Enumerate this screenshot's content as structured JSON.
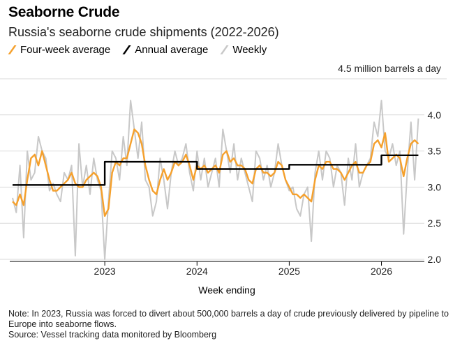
{
  "title": "Seaborne Crude",
  "subtitle": "Russia's seaborne crude shipments (2022-2026)",
  "legend": {
    "four_week": "Four-week average",
    "annual": "Annual average",
    "weekly": "Weekly"
  },
  "colors": {
    "four_week": "#f5a02c",
    "annual": "#000000",
    "weekly": "#c8c8c8",
    "grid": "#d9d9d9"
  },
  "unit_label": "4.5 million barrels a day",
  "xlabel": "Week ending",
  "note": "Note: In 2023, Russia was forced to divert about 500,000 barrels a day of crude previously delivered by pipeline to Europe into seaborne flows.",
  "source": "Source: Vessel tracking data monitored by Bloomberg",
  "chart_data": {
    "type": "line",
    "xlabel": "Week ending",
    "ylabel": "4.5 million barrels a day",
    "xlim": [
      2022.0,
      2026.45
    ],
    "ylim": [
      2.0,
      4.5
    ],
    "yticks": [
      2.0,
      2.5,
      3.0,
      3.5,
      4.0
    ],
    "ytick_labels": [
      "2.0",
      "2.5",
      "3.0",
      "3.5",
      "4.0"
    ],
    "xticks": [
      2023,
      2024,
      2025,
      2026
    ],
    "xtick_labels": [
      "2023",
      "2024",
      "2025",
      "2026"
    ],
    "grid": true,
    "legend_position": "top-left",
    "series": [
      {
        "name": "Weekly",
        "x": [
          2022.0,
          2022.04,
          2022.08,
          2022.12,
          2022.16,
          2022.2,
          2022.24,
          2022.28,
          2022.32,
          2022.36,
          2022.4,
          2022.44,
          2022.48,
          2022.52,
          2022.56,
          2022.6,
          2022.64,
          2022.68,
          2022.72,
          2022.76,
          2022.8,
          2022.84,
          2022.88,
          2022.92,
          2022.96,
          2023.0,
          2023.04,
          2023.08,
          2023.12,
          2023.16,
          2023.2,
          2023.24,
          2023.28,
          2023.32,
          2023.36,
          2023.4,
          2023.44,
          2023.48,
          2023.52,
          2023.56,
          2023.6,
          2023.64,
          2023.68,
          2023.72,
          2023.76,
          2023.8,
          2023.84,
          2023.88,
          2023.92,
          2023.96,
          2024.0,
          2024.04,
          2024.08,
          2024.12,
          2024.16,
          2024.2,
          2024.24,
          2024.28,
          2024.32,
          2024.36,
          2024.4,
          2024.44,
          2024.48,
          2024.52,
          2024.56,
          2024.6,
          2024.64,
          2024.68,
          2024.72,
          2024.76,
          2024.8,
          2024.84,
          2024.88,
          2024.92,
          2024.96,
          2025.0,
          2025.04,
          2025.08,
          2025.12,
          2025.16,
          2025.2,
          2025.24,
          2025.28,
          2025.32,
          2025.36,
          2025.4,
          2025.44,
          2025.48,
          2025.52,
          2025.56,
          2025.6,
          2025.64,
          2025.68,
          2025.72,
          2025.76,
          2025.8,
          2025.84,
          2025.88,
          2025.92,
          2025.96,
          2026.0,
          2026.04,
          2026.08,
          2026.12,
          2026.16,
          2026.2,
          2026.24,
          2026.28,
          2026.32,
          2026.36,
          2026.4
        ],
        "values": [
          2.85,
          2.65,
          3.3,
          2.3,
          3.5,
          3.1,
          3.2,
          3.7,
          3.5,
          3.4,
          2.95,
          3.05,
          2.9,
          2.8,
          3.2,
          3.1,
          3.3,
          2.05,
          3.6,
          3.0,
          3.3,
          2.9,
          3.4,
          3.1,
          2.95,
          2.0,
          2.8,
          3.5,
          3.4,
          3.1,
          3.7,
          3.3,
          4.2,
          3.8,
          3.4,
          3.9,
          3.1,
          3.0,
          2.6,
          2.8,
          3.4,
          3.1,
          2.7,
          3.2,
          3.5,
          3.3,
          3.4,
          3.6,
          3.2,
          2.95,
          3.5,
          3.1,
          3.4,
          3.0,
          3.2,
          3.4,
          3.0,
          3.8,
          3.5,
          3.2,
          3.6,
          3.1,
          3.4,
          3.2,
          3.0,
          2.8,
          3.5,
          3.4,
          3.1,
          3.3,
          3.0,
          3.2,
          3.6,
          3.3,
          3.1,
          2.95,
          3.0,
          2.7,
          2.6,
          2.9,
          3.0,
          2.25,
          3.2,
          3.5,
          3.1,
          3.5,
          3.4,
          3.0,
          3.3,
          3.2,
          2.75,
          3.4,
          3.1,
          3.6,
          3.0,
          3.2,
          3.3,
          3.4,
          3.9,
          3.7,
          4.2,
          3.5,
          3.4,
          3.6,
          3.3,
          3.5,
          2.35,
          3.2,
          3.9,
          3.1,
          3.95
        ]
      },
      {
        "name": "Four-week average",
        "x": [
          2022.0,
          2022.04,
          2022.08,
          2022.12,
          2022.16,
          2022.2,
          2022.24,
          2022.28,
          2022.32,
          2022.36,
          2022.4,
          2022.44,
          2022.48,
          2022.52,
          2022.56,
          2022.6,
          2022.64,
          2022.68,
          2022.72,
          2022.76,
          2022.8,
          2022.84,
          2022.88,
          2022.92,
          2022.96,
          2023.0,
          2023.04,
          2023.08,
          2023.12,
          2023.16,
          2023.2,
          2023.24,
          2023.28,
          2023.32,
          2023.36,
          2023.4,
          2023.44,
          2023.48,
          2023.52,
          2023.56,
          2023.6,
          2023.64,
          2023.68,
          2023.72,
          2023.76,
          2023.8,
          2023.84,
          2023.88,
          2023.92,
          2023.96,
          2024.0,
          2024.04,
          2024.08,
          2024.12,
          2024.16,
          2024.2,
          2024.24,
          2024.28,
          2024.32,
          2024.36,
          2024.4,
          2024.44,
          2024.48,
          2024.52,
          2024.56,
          2024.6,
          2024.64,
          2024.68,
          2024.72,
          2024.76,
          2024.8,
          2024.84,
          2024.88,
          2024.92,
          2024.96,
          2025.0,
          2025.04,
          2025.08,
          2025.12,
          2025.16,
          2025.2,
          2025.24,
          2025.28,
          2025.32,
          2025.36,
          2025.4,
          2025.44,
          2025.48,
          2025.52,
          2025.56,
          2025.6,
          2025.64,
          2025.68,
          2025.72,
          2025.76,
          2025.8,
          2025.84,
          2025.88,
          2025.92,
          2025.96,
          2026.0,
          2026.04,
          2026.08,
          2026.12,
          2026.16,
          2026.2,
          2026.24,
          2026.28,
          2026.32,
          2026.36,
          2026.4
        ],
        "values": [
          2.8,
          2.75,
          2.9,
          2.75,
          3.1,
          3.4,
          3.45,
          3.3,
          3.5,
          3.3,
          3.1,
          2.95,
          2.95,
          3.0,
          3.05,
          3.1,
          3.2,
          3.05,
          3.0,
          3.0,
          3.1,
          3.15,
          3.2,
          3.15,
          3.0,
          2.6,
          2.7,
          3.2,
          3.35,
          3.3,
          3.4,
          3.4,
          3.6,
          3.8,
          3.75,
          3.6,
          3.3,
          3.1,
          2.95,
          2.9,
          3.1,
          3.25,
          3.1,
          3.2,
          3.35,
          3.3,
          3.35,
          3.45,
          3.3,
          3.1,
          3.3,
          3.25,
          3.3,
          3.2,
          3.25,
          3.3,
          3.2,
          3.45,
          3.5,
          3.35,
          3.4,
          3.3,
          3.3,
          3.25,
          3.1,
          3.05,
          3.25,
          3.3,
          3.2,
          3.2,
          3.15,
          3.2,
          3.35,
          3.3,
          3.1,
          3.0,
          2.9,
          2.9,
          2.85,
          2.9,
          2.85,
          2.8,
          3.1,
          3.3,
          3.25,
          3.35,
          3.35,
          3.25,
          3.25,
          3.2,
          3.1,
          3.2,
          3.3,
          3.35,
          3.2,
          3.2,
          3.3,
          3.35,
          3.6,
          3.65,
          3.55,
          3.75,
          3.35,
          3.4,
          3.45,
          3.4,
          3.15,
          3.4,
          3.6,
          3.65,
          3.6
        ]
      },
      {
        "name": "Annual average",
        "x": [
          2022.0,
          2023.0,
          2023.0,
          2024.0,
          2024.0,
          2025.0,
          2025.0,
          2026.0,
          2026.0,
          2026.4
        ],
        "values": [
          3.03,
          3.03,
          3.35,
          3.35,
          3.25,
          3.25,
          3.31,
          3.31,
          3.44,
          3.44
        ]
      }
    ]
  }
}
